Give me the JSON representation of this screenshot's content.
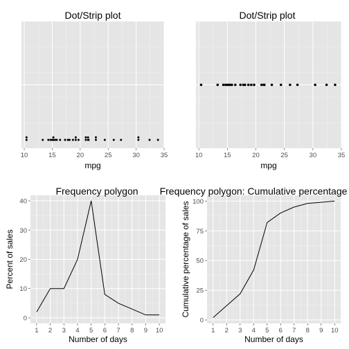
{
  "colors": {
    "panel": "#e5e5e5",
    "grid_major": "#ffffff",
    "grid_minor": "#f2f2f2",
    "mark": "#000000",
    "tick_text": "#4d4d4d"
  },
  "chart_data": [
    {
      "type": "scatter",
      "title": "Dot/Strip plot",
      "xlabel": "mpg",
      "ylabel": "",
      "xlim": [
        9.5,
        35
      ],
      "xticks": [
        "10",
        "15",
        "20",
        "25",
        "30",
        "35"
      ],
      "grid": true,
      "subtype": "stacked dot plot",
      "x": [
        10.4,
        10.4,
        13.3,
        14.3,
        14.7,
        15.0,
        15.2,
        15.2,
        15.5,
        15.8,
        16.4,
        17.3,
        17.8,
        18.1,
        18.7,
        19.2,
        19.2,
        19.7,
        21.0,
        21.0,
        21.4,
        21.4,
        21.5,
        22.8,
        22.8,
        24.4,
        26.0,
        27.3,
        30.4,
        30.4,
        32.4,
        33.9
      ]
    },
    {
      "type": "scatter",
      "title": "Dot/Strip plot",
      "xlabel": "mpg",
      "ylabel": "",
      "xlim": [
        9.5,
        35
      ],
      "xticks": [
        "10",
        "15",
        "20",
        "25",
        "30",
        "35"
      ],
      "grid": true,
      "subtype": "strip plot",
      "x": [
        10.4,
        13.3,
        14.3,
        14.7,
        15.0,
        15.2,
        15.5,
        15.8,
        16.4,
        17.3,
        17.8,
        18.1,
        18.7,
        19.2,
        19.7,
        21.0,
        21.4,
        21.5,
        22.8,
        24.4,
        26.0,
        27.3,
        30.4,
        32.4,
        33.9
      ]
    },
    {
      "type": "line",
      "title": "Frequency polygon",
      "xlabel": "Number of days",
      "ylabel": "Percent of sales",
      "x": [
        1,
        2,
        3,
        4,
        5,
        6,
        7,
        8,
        9,
        10
      ],
      "y": [
        2,
        10,
        10,
        20,
        40,
        8,
        5,
        3,
        1,
        1
      ],
      "xlim": [
        0.55,
        10.45
      ],
      "ylim": [
        -1.9,
        41.9
      ],
      "xticks": [
        "1",
        "2",
        "3",
        "4",
        "5",
        "6",
        "7",
        "8",
        "9",
        "10"
      ],
      "yticks": [
        "0",
        "10",
        "20",
        "30",
        "40"
      ],
      "grid": true
    },
    {
      "type": "line",
      "title": "Frequency polygon: Cumulative percentage",
      "xlabel": "Number of days",
      "ylabel": "Cumulative percentage of sales",
      "x": [
        1,
        2,
        3,
        4,
        5,
        6,
        7,
        8,
        9,
        10
      ],
      "y": [
        2,
        12,
        22,
        42,
        82,
        90,
        95,
        98,
        99,
        100
      ],
      "xlim": [
        0.55,
        10.45
      ],
      "ylim": [
        -2.9,
        104.9
      ],
      "xticks": [
        "1",
        "2",
        "3",
        "4",
        "5",
        "6",
        "7",
        "8",
        "9",
        "10"
      ],
      "yticks": [
        "0",
        "25",
        "50",
        "75",
        "100"
      ],
      "grid": true
    }
  ]
}
